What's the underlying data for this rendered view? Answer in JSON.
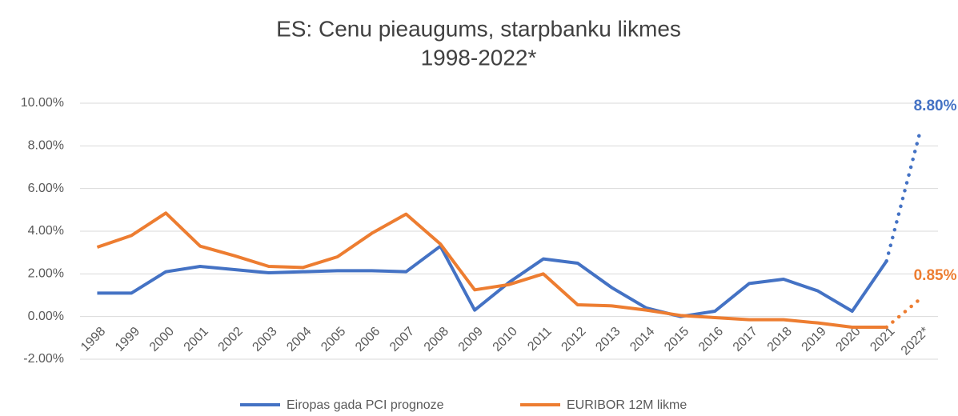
{
  "chart_data": {
    "type": "line",
    "title": "ES: Cenu pieaugums, starpbanku likmes",
    "subtitle": "1998-2022*",
    "categories": [
      "1998",
      "1999",
      "2000",
      "2001",
      "2002",
      "2003",
      "2004",
      "2005",
      "2006",
      "2007",
      "2008",
      "2009",
      "2010",
      "2011",
      "2012",
      "2013",
      "2014",
      "2015",
      "2016",
      "2017",
      "2018",
      "2019",
      "2020",
      "2021",
      "2022*"
    ],
    "series": [
      {
        "name": "Eiropas gada PCI prognoze",
        "color": "#4472c4",
        "values": [
          1.1,
          1.1,
          2.1,
          2.35,
          2.2,
          2.05,
          2.1,
          2.15,
          2.15,
          2.1,
          3.3,
          0.3,
          1.6,
          2.7,
          2.5,
          1.35,
          0.4,
          0.0,
          0.25,
          1.55,
          1.75,
          1.2,
          0.25,
          2.6,
          8.8
        ],
        "value_labels": [
          null,
          null,
          null,
          null,
          null,
          null,
          null,
          null,
          null,
          null,
          null,
          null,
          null,
          null,
          null,
          null,
          null,
          null,
          null,
          null,
          null,
          null,
          null,
          null,
          "8.80%"
        ]
      },
      {
        "name": "EURIBOR 12M likme",
        "color": "#ed7d31",
        "values": [
          3.25,
          3.8,
          4.85,
          3.3,
          2.85,
          2.35,
          2.3,
          2.8,
          3.9,
          4.8,
          3.4,
          1.25,
          1.5,
          2.0,
          0.55,
          0.5,
          0.3,
          0.05,
          -0.05,
          -0.15,
          -0.15,
          -0.3,
          -0.5,
          -0.5,
          0.85
        ],
        "value_labels": [
          null,
          null,
          null,
          null,
          null,
          null,
          null,
          null,
          null,
          null,
          null,
          null,
          null,
          null,
          null,
          null,
          null,
          null,
          null,
          null,
          null,
          null,
          null,
          null,
          "0.85%"
        ]
      }
    ],
    "ylim": [
      -2,
      10
    ],
    "yticks": [
      {
        "value": -2,
        "label": "-2.00%"
      },
      {
        "value": 0,
        "label": "0.00%"
      },
      {
        "value": 2,
        "label": "2.00%"
      },
      {
        "value": 4,
        "label": "4.00%"
      },
      {
        "value": 6,
        "label": "6.00%"
      },
      {
        "value": 8,
        "label": "8.00%"
      },
      {
        "value": 10,
        "label": "10.00%"
      }
    ],
    "grid": true,
    "legend": "bottom"
  }
}
